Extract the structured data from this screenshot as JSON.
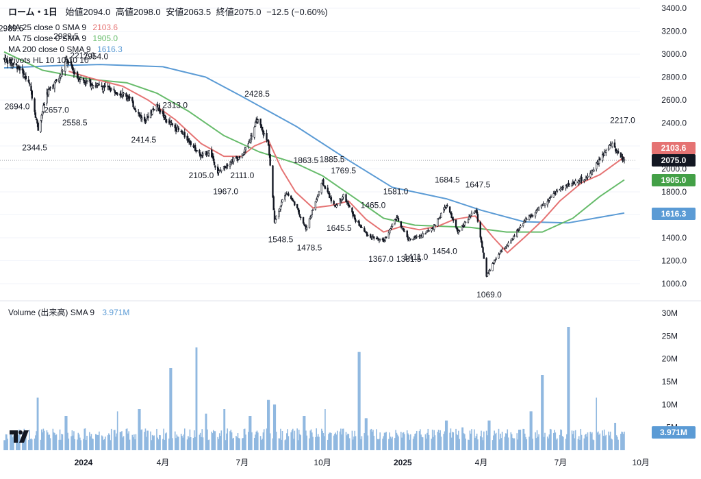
{
  "header": {
    "symbol": "ローム・1日",
    "o_label": "始値",
    "o": "2094.0",
    "h_label": "高値",
    "h": "2098.0",
    "l_label": "安値",
    "l": "2063.5",
    "c_label": "終値",
    "c": "2075.0",
    "change": "−12.5 (−0.60%)"
  },
  "legends": [
    {
      "label": "MA 25 close 0 SMA 9",
      "value": "2103.6",
      "color": "#e57373"
    },
    {
      "label": "MA 75 close 0 SMA 9",
      "value": "1905.0",
      "color": "#66bb6a"
    },
    {
      "label": "MA 200 close 0 SMA 9",
      "value": "1616.3",
      "color": "#5b9bd5"
    },
    {
      "label": "Pivots HL 10 10 10 10",
      "value": "",
      "color": "#131722"
    }
  ],
  "volume_legend": {
    "label": "Volume (出来高)",
    "sma": "SMA 9",
    "value": "3.971M"
  },
  "badges": {
    "ma25": "2103.6",
    "close": "2075.0",
    "ma75": "1905.0",
    "ma200": "1616.3",
    "volume": "3.971M"
  },
  "colors": {
    "up": "#26a69a",
    "down": "#ef5350",
    "candle": "#131722",
    "ma25": "#e57373",
    "ma75": "#66bb6a",
    "ma200": "#5b9bd5",
    "volume": "#90b8e0",
    "close_badge": "#131722"
  },
  "chart_data": {
    "type": "candlestick",
    "price_axis": {
      "ticks": [
        "1000.0",
        "1200.0",
        "1400.0",
        "1600.0",
        "1800.0",
        "2000.0",
        "2200.0",
        "2400.0",
        "2600.0",
        "2800.0",
        "3000.0",
        "3200.0",
        "3400.0"
      ],
      "ylim": [
        880,
        3440
      ]
    },
    "volume_axis": {
      "ticks": [
        "5M",
        "10M",
        "15M",
        "20M",
        "25M",
        "30M"
      ],
      "ylim": [
        0,
        30
      ]
    },
    "x_axis": {
      "labels": [
        "2024",
        "4月",
        "7月",
        "10月",
        "2025",
        "4月",
        "7月",
        "10月"
      ]
    },
    "price_path": [
      [
        "2023-10-02",
        2960
      ],
      [
        "2023-10-20",
        2880
      ],
      [
        "2023-11-01",
        2720
      ],
      [
        "2023-11-10",
        2345
      ],
      [
        "2023-11-20",
        2660
      ],
      [
        "2023-12-05",
        2800
      ],
      [
        "2023-12-12",
        2955
      ],
      [
        "2023-12-25",
        2800
      ],
      [
        "2024-01-10",
        2740
      ],
      [
        "2024-01-31",
        2700
      ],
      [
        "2024-02-20",
        2640
      ],
      [
        "2024-03-10",
        2415
      ],
      [
        "2024-03-25",
        2560
      ],
      [
        "2024-04-05",
        2420
      ],
      [
        "2024-04-20",
        2330
      ],
      [
        "2024-05-01",
        2250
      ],
      [
        "2024-05-15",
        2105
      ],
      [
        "2024-05-25",
        2160
      ],
      [
        "2024-06-03",
        1967
      ],
      [
        "2024-06-20",
        2080
      ],
      [
        "2024-07-01",
        2111
      ],
      [
        "2024-07-10",
        2260
      ],
      [
        "2024-07-18",
        2428
      ],
      [
        "2024-07-31",
        2220
      ],
      [
        "2024-08-07",
        1548
      ],
      [
        "2024-08-20",
        1800
      ],
      [
        "2024-08-30",
        1700
      ],
      [
        "2024-09-12",
        1478
      ],
      [
        "2024-10-01",
        1885
      ],
      [
        "2024-10-15",
        1670
      ],
      [
        "2024-10-25",
        1769
      ],
      [
        "2024-11-08",
        1550
      ],
      [
        "2024-11-22",
        1420
      ],
      [
        "2024-12-10",
        1367
      ],
      [
        "2024-12-25",
        1580
      ],
      [
        "2025-01-08",
        1381
      ],
      [
        "2025-01-20",
        1411
      ],
      [
        "2025-02-05",
        1490
      ],
      [
        "2025-02-20",
        1684
      ],
      [
        "2025-03-05",
        1454
      ],
      [
        "2025-03-26",
        1647
      ],
      [
        "2025-04-07",
        1069
      ],
      [
        "2025-04-20",
        1250
      ],
      [
        "2025-05-05",
        1370
      ],
      [
        "2025-05-20",
        1550
      ],
      [
        "2025-06-05",
        1640
      ],
      [
        "2025-06-25",
        1800
      ],
      [
        "2025-07-15",
        1880
      ],
      [
        "2025-07-31",
        1920
      ],
      [
        "2025-08-15",
        2080
      ],
      [
        "2025-08-28",
        2217
      ],
      [
        "2025-09-12",
        2075
      ]
    ],
    "ma25_path": [
      [
        "2023-12-15",
        2850
      ],
      [
        "2024-01-10",
        2790
      ],
      [
        "2024-02-15",
        2720
      ],
      [
        "2024-03-15",
        2600
      ],
      [
        "2024-04-15",
        2430
      ],
      [
        "2024-05-15",
        2220
      ],
      [
        "2024-06-10",
        2110
      ],
      [
        "2024-06-30",
        2110
      ],
      [
        "2024-07-15",
        2200
      ],
      [
        "2024-07-31",
        2250
      ],
      [
        "2024-08-15",
        2000
      ],
      [
        "2024-08-31",
        1800
      ],
      [
        "2024-09-20",
        1660
      ],
      [
        "2024-10-10",
        1680
      ],
      [
        "2024-10-31",
        1720
      ],
      [
        "2024-11-20",
        1560
      ],
      [
        "2024-12-10",
        1450
      ],
      [
        "2024-12-31",
        1500
      ],
      [
        "2025-01-20",
        1470
      ],
      [
        "2025-02-10",
        1500
      ],
      [
        "2025-03-01",
        1560
      ],
      [
        "2025-03-25",
        1590
      ],
      [
        "2025-04-15",
        1400
      ],
      [
        "2025-05-01",
        1270
      ],
      [
        "2025-05-20",
        1400
      ],
      [
        "2025-06-10",
        1550
      ],
      [
        "2025-06-30",
        1720
      ],
      [
        "2025-07-25",
        1880
      ],
      [
        "2025-08-15",
        1950
      ],
      [
        "2025-09-12",
        2103.6
      ]
    ],
    "ma75_path": [
      [
        "2023-10-02",
        3020
      ],
      [
        "2023-11-15",
        2860
      ],
      [
        "2024-01-10",
        2780
      ],
      [
        "2024-02-20",
        2750
      ],
      [
        "2024-03-25",
        2660
      ],
      [
        "2024-05-01",
        2500
      ],
      [
        "2024-06-10",
        2290
      ],
      [
        "2024-07-20",
        2150
      ],
      [
        "2024-08-31",
        2050
      ],
      [
        "2024-10-01",
        1940
      ],
      [
        "2024-11-10",
        1730
      ],
      [
        "2024-12-10",
        1570
      ],
      [
        "2025-01-15",
        1510
      ],
      [
        "2025-02-15",
        1500
      ],
      [
        "2025-03-20",
        1490
      ],
      [
        "2025-04-30",
        1450
      ],
      [
        "2025-06-10",
        1450
      ],
      [
        "2025-07-15",
        1570
      ],
      [
        "2025-08-15",
        1760
      ],
      [
        "2025-09-12",
        1905
      ]
    ],
    "ma200_path": [
      [
        "2023-10-02",
        2880
      ],
      [
        "2023-12-01",
        2900
      ],
      [
        "2024-01-20",
        2910
      ],
      [
        "2024-04-01",
        2890
      ],
      [
        "2024-05-20",
        2800
      ],
      [
        "2024-07-01",
        2630
      ],
      [
        "2024-09-01",
        2370
      ],
      [
        "2024-11-01",
        2070
      ],
      [
        "2024-12-20",
        1840
      ],
      [
        "2025-02-20",
        1740
      ],
      [
        "2025-04-01",
        1640
      ],
      [
        "2025-05-20",
        1540
      ],
      [
        "2025-07-10",
        1530
      ],
      [
        "2025-09-12",
        1616.3
      ]
    ],
    "pivot_labels": [
      {
        "text": "2989.5",
        "date": "2023-10-10",
        "price": 3200
      },
      {
        "text": "2929.5",
        "date": "2023-12-12",
        "price": 3130
      },
      {
        "text": "2954.0",
        "date": "2024-01-15",
        "price": 2955
      },
      {
        "text": "2217.0",
        "date": "2023-12-31",
        "price": 2965
      },
      {
        "text": "2694.0",
        "date": "2023-10-17",
        "price": 2520
      },
      {
        "text": "2657.0",
        "date": "2023-12-01",
        "price": 2490
      },
      {
        "text": "2558.5",
        "date": "2023-12-22",
        "price": 2380
      },
      {
        "text": "2344.5",
        "date": "2023-11-06",
        "price": 2160
      },
      {
        "text": "2414.5",
        "date": "2024-03-10",
        "price": 2230
      },
      {
        "text": "2313.0",
        "date": "2024-04-15",
        "price": 2530
      },
      {
        "text": "2428.5",
        "date": "2024-07-18",
        "price": 2630
      },
      {
        "text": "2105.0",
        "date": "2024-05-15",
        "price": 1920
      },
      {
        "text": "1967.0",
        "date": "2024-06-12",
        "price": 1780
      },
      {
        "text": "2111.0",
        "date": "2024-07-01",
        "price": 1920
      },
      {
        "text": "1863.5",
        "date": "2024-09-12",
        "price": 2050
      },
      {
        "text": "1885.5",
        "date": "2024-10-12",
        "price": 2060
      },
      {
        "text": "1769.5",
        "date": "2024-10-25",
        "price": 1960
      },
      {
        "text": "1548.5",
        "date": "2024-08-14",
        "price": 1360
      },
      {
        "text": "1478.5",
        "date": "2024-09-16",
        "price": 1290
      },
      {
        "text": "1645.5",
        "date": "2024-10-20",
        "price": 1460
      },
      {
        "text": "1465.0",
        "date": "2024-11-28",
        "price": 1660
      },
      {
        "text": "1581.0",
        "date": "2024-12-24",
        "price": 1780
      },
      {
        "text": "1367.0",
        "date": "2024-12-07",
        "price": 1190
      },
      {
        "text": "1381.5",
        "date": "2025-01-08",
        "price": 1190
      },
      {
        "text": "1411.0",
        "date": "2025-01-16",
        "price": 1210
      },
      {
        "text": "1454.0",
        "date": "2025-02-18",
        "price": 1260
      },
      {
        "text": "1684.5",
        "date": "2025-02-21",
        "price": 1880
      },
      {
        "text": "1647.5",
        "date": "2025-03-28",
        "price": 1840
      },
      {
        "text": "1069.0",
        "date": "2025-04-10",
        "price": 880
      },
      {
        "text": "2217.0",
        "date": "2025-09-10",
        "price": 2400
      }
    ],
    "volume_spikes": [
      [
        "2023-10-02",
        2.2
      ],
      [
        "2023-10-20",
        4.5
      ],
      [
        "2023-11-10",
        11.5
      ],
      [
        "2023-12-12",
        7.5
      ],
      [
        "2024-02-10",
        8.5
      ],
      [
        "2024-03-05",
        9.0
      ],
      [
        "2024-04-10",
        18.0
      ],
      [
        "2024-05-10",
        22.5
      ],
      [
        "2024-05-20",
        8.0
      ],
      [
        "2024-06-10",
        9.0
      ],
      [
        "2024-07-10",
        7.5
      ],
      [
        "2024-07-31",
        11.0
      ],
      [
        "2024-08-07",
        10.0
      ],
      [
        "2024-09-10",
        7.5
      ],
      [
        "2024-10-05",
        9.0
      ],
      [
        "2024-11-12",
        21.5
      ],
      [
        "2024-11-20",
        7.0
      ],
      [
        "2025-02-20",
        6.5
      ],
      [
        "2025-03-10",
        5.0
      ],
      [
        "2025-04-10",
        6.5
      ],
      [
        "2025-05-15",
        4.5
      ],
      [
        "2025-05-28",
        8.5
      ],
      [
        "2025-06-10",
        16.5
      ],
      [
        "2025-07-10",
        27.0
      ],
      [
        "2025-08-10",
        11.5
      ],
      [
        "2025-09-01",
        6.0
      ]
    ]
  }
}
